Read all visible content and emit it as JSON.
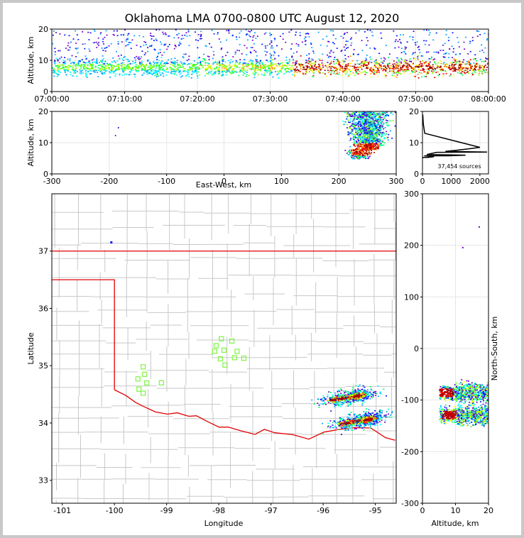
{
  "title": "Oklahoma LMA 0700-0800 UTC August 12, 2020",
  "colors": {
    "border_state": "#e00000",
    "county": "#c8c8c8",
    "station": "#7ef542",
    "curve": "#000000",
    "frame": "#c8c8c8"
  },
  "chart_data": [
    {
      "id": "time-height",
      "type": "heatmap",
      "ylabel": "Altitude, km",
      "ylim": [
        0,
        20
      ],
      "yticks": [
        0,
        10,
        20
      ],
      "xticks": [
        "07:00:00",
        "07:10:00",
        "07:20:00",
        "07:30:00",
        "07:40:00",
        "07:50:00",
        "08:00:00"
      ],
      "xlim_minutes": [
        0,
        60
      ],
      "density_bands": [
        {
          "x_start_min": 0,
          "x_end_min": 20,
          "alt_center_km": 7.5,
          "intensity": "moderate"
        },
        {
          "x_start_min": 20,
          "x_end_min": 33,
          "alt_center_km": 8,
          "intensity": "moderate-high"
        },
        {
          "x_start_min": 33,
          "x_end_min": 60,
          "alt_center_km": 7.5,
          "intensity": "high"
        }
      ]
    },
    {
      "id": "ew-height",
      "type": "heatmap",
      "xlabel": "East-West, km",
      "ylabel": "Altitude, km",
      "xlim": [
        -300,
        300
      ],
      "xticks": [
        -300,
        -200,
        -100,
        0,
        100,
        200,
        300
      ],
      "ylim": [
        0,
        20
      ],
      "yticks": [
        0,
        10,
        20
      ],
      "storms": [
        {
          "x_center_km": 245,
          "x_span_km": [
            200,
            300
          ],
          "alt_top_km": 20,
          "core_alt_km": 8
        }
      ]
    },
    {
      "id": "altitude-histogram",
      "type": "line",
      "xlim": [
        0,
        2300
      ],
      "xticks": [
        0,
        1000,
        2000
      ],
      "ylim": [
        0,
        20
      ],
      "yticks": [
        0,
        10,
        20
      ],
      "x": [
        0,
        20,
        60,
        150,
        300,
        500,
        800,
        1200,
        1600,
        2000,
        2250,
        1500,
        900,
        400,
        200,
        80,
        30,
        10
      ],
      "y": [
        5.0,
        5.3,
        5.8,
        6.2,
        6.5,
        6.9,
        7.2,
        7.6,
        8.0,
        8.5,
        7.0,
        6.0,
        5.8,
        5.5,
        5.3,
        13,
        16,
        19
      ],
      "annotation": "37,454 sources"
    },
    {
      "id": "plan-view",
      "type": "scatter",
      "xlabel": "Longitude",
      "ylabel": "Latitude",
      "xlim": [
        -101.2,
        -94.6
      ],
      "xticks": [
        -101,
        -100,
        -99,
        -98,
        -97,
        -96,
        -95
      ],
      "ylim": [
        32.6,
        38.0
      ],
      "yticks": [
        33,
        34,
        35,
        36,
        37
      ],
      "stations": [
        {
          "lon": -99.55,
          "lat": 34.77
        },
        {
          "lon": -99.42,
          "lat": 34.85
        },
        {
          "lon": -99.38,
          "lat": 34.7
        },
        {
          "lon": -99.53,
          "lat": 34.59
        },
        {
          "lon": -99.45,
          "lat": 34.52
        },
        {
          "lon": -99.45,
          "lat": 34.98
        },
        {
          "lon": -99.1,
          "lat": 34.7
        },
        {
          "lon": -97.95,
          "lat": 35.47
        },
        {
          "lon": -98.05,
          "lat": 35.35
        },
        {
          "lon": -98.08,
          "lat": 35.25
        },
        {
          "lon": -97.9,
          "lat": 35.27
        },
        {
          "lon": -97.75,
          "lat": 35.43
        },
        {
          "lon": -97.65,
          "lat": 35.25
        },
        {
          "lon": -97.97,
          "lat": 35.12
        },
        {
          "lon": -97.7,
          "lat": 35.14
        },
        {
          "lon": -97.52,
          "lat": 35.13
        },
        {
          "lon": -97.88,
          "lat": 35.01
        }
      ],
      "storms": [
        {
          "lon": -95.35,
          "lat": 34.48,
          "label": "northern cell"
        },
        {
          "lon": -95.15,
          "lat": 34.07,
          "label": "southern cell"
        }
      ]
    },
    {
      "id": "ns-height",
      "type": "heatmap",
      "xlabel": "Altitude, km",
      "ylabel": "North-South, km",
      "xlim": [
        0,
        20
      ],
      "xticks": [
        0,
        10,
        20
      ],
      "ylim": [
        -300,
        300
      ],
      "yticks": [
        -300,
        -200,
        -100,
        0,
        100,
        200,
        300
      ],
      "storms": [
        {
          "ns_center_km": -85,
          "alt_core_km": 7
        },
        {
          "ns_center_km": -128,
          "alt_core_km": 8
        }
      ]
    }
  ]
}
